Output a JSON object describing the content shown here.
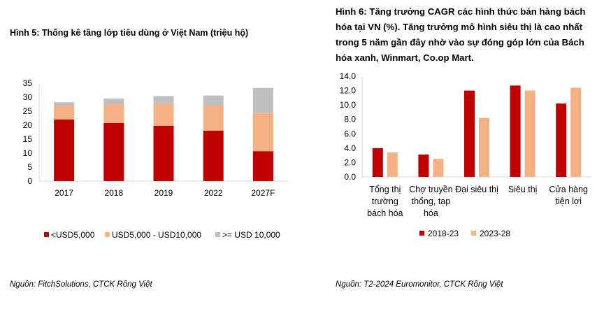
{
  "colors": {
    "red": "#c00000",
    "peach": "#f4b183",
    "gray": "#bfbfbf",
    "axis": "#d9d9d9"
  },
  "left": {
    "title": "Hình 5: Thống kê tầng lớp tiêu dùng ở Việt Nam (triệu hộ)",
    "source": "Nguồn: FitchSolutions, CTCK Rồng Việt"
  },
  "right": {
    "title": "Hình 6: Tăng trưởng CAGR các hình thức bán hàng bách hóa tại VN (%). Tăng trưởng mô hình siêu thị là cao nhất trong 5 năm gần đây nhờ vào sự đóng góp lớn của Bách hóa xanh, Winmart, Co.op Mart.",
    "source": "Nguồn: T2-2024 Euromonitor, CTCK Rồng Việt"
  },
  "chart_data": [
    {
      "type": "bar",
      "stacked": true,
      "categories": [
        "2017",
        "2018",
        "2019",
        "2022",
        "2027F"
      ],
      "series": [
        {
          "name": "<USD5,000",
          "color": "#c00000",
          "values": [
            22,
            20.8,
            19.8,
            18,
            10.7
          ]
        },
        {
          "name": "USD5,000 - USD10,000",
          "color": "#f4b183",
          "values": [
            5,
            6.6,
            7.8,
            9,
            13.6
          ]
        },
        {
          "name": ">= USD 10,000",
          "color": "#bfbfbf",
          "values": [
            1.2,
            2.1,
            2.8,
            3.6,
            9
          ]
        }
      ],
      "yticks": [
        "0",
        "5",
        "10",
        "15",
        "20",
        "25",
        "30",
        "35"
      ],
      "ylim": [
        0,
        35
      ],
      "grid": false,
      "legend": "bottom"
    },
    {
      "type": "bar",
      "categories": [
        [
          "Tổng thị",
          "trường",
          "bách hóa"
        ],
        [
          "Chợ truyền",
          "thống, tạp",
          "hóa"
        ],
        [
          "Đại siêu thị"
        ],
        [
          "Siêu thị"
        ],
        [
          "Cửa hàng",
          "tiện lợi"
        ]
      ],
      "series": [
        {
          "name": "2018-23",
          "color": "#c00000",
          "values": [
            4.0,
            3.1,
            12.0,
            12.7,
            10.2
          ]
        },
        {
          "name": "2023-28",
          "color": "#f4b183",
          "values": [
            3.4,
            2.5,
            8.2,
            12.0,
            12.4
          ]
        }
      ],
      "yticks": [
        "0.0",
        "2.0",
        "4.0",
        "6.0",
        "8.0",
        "10.0",
        "12.0",
        "14.0"
      ],
      "ylim": [
        0,
        14
      ],
      "grid": false,
      "legend": "bottom"
    }
  ]
}
